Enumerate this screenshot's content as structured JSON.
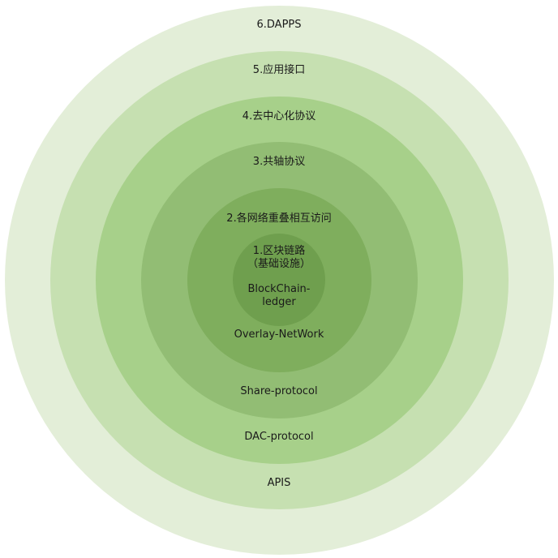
{
  "layers": [
    {
      "title": "6.DAPPS",
      "subtitle": "APIS",
      "color": "#e3eed8"
    },
    {
      "title": "5.应用接口",
      "subtitle": "DAC-protocol",
      "color": "#c6e0b1"
    },
    {
      "title": "4.去中心化协议",
      "subtitle": "Share-protocol",
      "color": "#a7d08a"
    },
    {
      "title": "3.共轴协议",
      "subtitle": "",
      "color": "#92bd74"
    },
    {
      "title": "2.各网络重叠相互访问",
      "subtitle": "Overlay-NetWork",
      "color": "#7fae5d"
    },
    {
      "title": "1.区块链路",
      "title_line2": "（基础设施）",
      "subtitle": "BlockChain-",
      "subtitle_line2": "ledger",
      "color": "#6f9f4e"
    }
  ]
}
